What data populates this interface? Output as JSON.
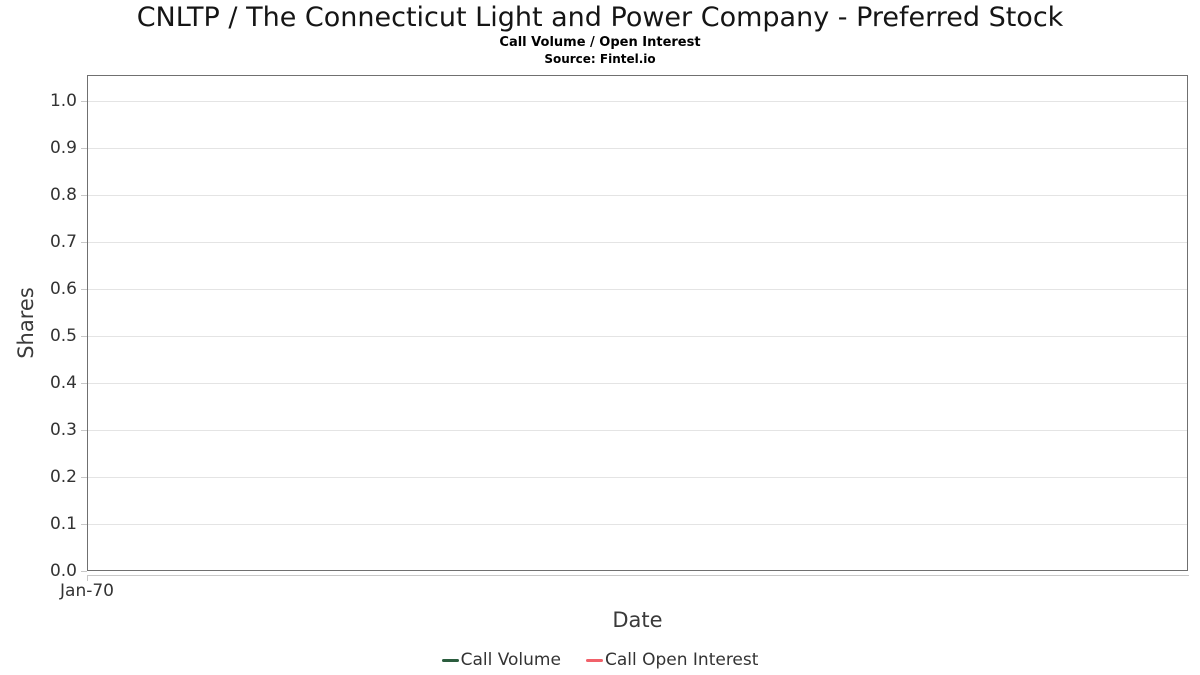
{
  "page": {
    "background": "#ffffff"
  },
  "chart_data": {
    "type": "line",
    "title": "CNLTP / The Connecticut Light and Power Company - Preferred Stock",
    "subtitle": "Call Volume / Open Interest",
    "source": "Source: Fintel.io",
    "xlabel": "Date",
    "ylabel": "Shares",
    "x_ticks": [
      "Jan-70"
    ],
    "y_ticks": [
      0.0,
      0.1,
      0.2,
      0.3,
      0.4,
      0.5,
      0.6,
      0.7,
      0.8,
      0.9,
      1.0
    ],
    "y_tick_labels": [
      "0.0",
      "0.1",
      "0.2",
      "0.3",
      "0.4",
      "0.5",
      "0.6",
      "0.7",
      "0.8",
      "0.9",
      "1.0"
    ],
    "ylim": [
      0,
      1.055
    ],
    "grid": "horizontal gridlines only",
    "legend_position": "bottom-center",
    "series": [
      {
        "name": "Call Volume",
        "color": "#2b5d3e",
        "x": [],
        "values": []
      },
      {
        "name": "Call Open Interest",
        "color": "#f1616a",
        "x": [],
        "values": []
      }
    ],
    "colors": {
      "frame": "#707070",
      "gridline": "#e4e4e4",
      "axis_line": "#c8c8c8",
      "tick_text": "#333333"
    }
  }
}
